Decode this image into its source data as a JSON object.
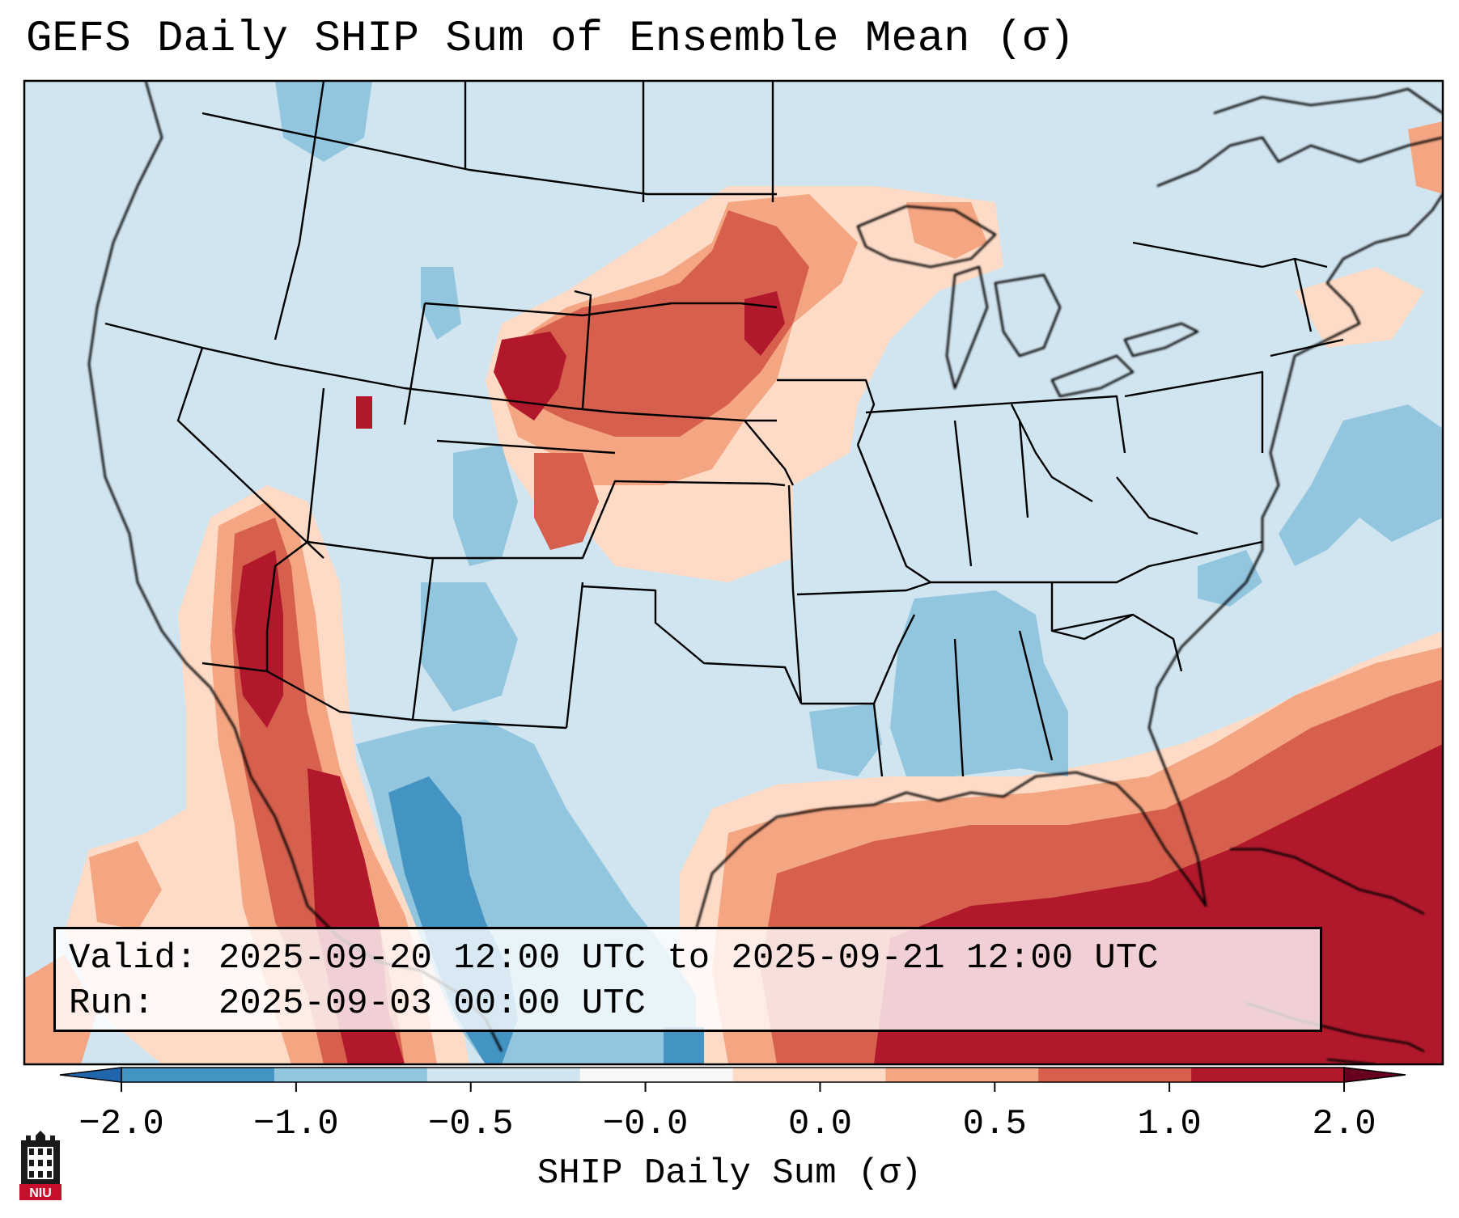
{
  "title": "GEFS Daily SHIP Sum of Ensemble Mean (σ)",
  "info": {
    "valid_label": "Valid:",
    "valid_range": "2025-09-20 12:00 UTC to 2025-09-21 12:00 UTC",
    "run_label": "Run:",
    "run_time": "2025-09-03 00:00 UTC"
  },
  "colorbar": {
    "title": "SHIP Daily Sum (σ)",
    "ticks": [
      "−2.0",
      "−1.0",
      "−0.5",
      "−0.0",
      "0.0",
      "0.5",
      "1.0",
      "2.0"
    ],
    "colors": [
      "#4393c3",
      "#92c5de",
      "#d1e5f0",
      "#f7f7f7",
      "#fddbc7",
      "#f4a582",
      "#d6604d",
      "#b2182b"
    ],
    "extend": "both"
  },
  "logo": {
    "text": "NIU",
    "color": "#c8102e"
  },
  "map": {
    "region": "Continental United States",
    "background_color": "#d1e5f0",
    "anomalies": [
      {
        "name": "northern-plains-positive",
        "level": "1.0 to 2.0"
      },
      {
        "name": "southwest-positive",
        "level": "1.0 to 2.0"
      },
      {
        "name": "gulf-atlantic-positive",
        "level": "1.0 to 2.0"
      },
      {
        "name": "texas-mexico-negative",
        "level": "-2.0 to -0.5"
      },
      {
        "name": "southeast-negative",
        "level": "-1.0 to -0.5"
      },
      {
        "name": "atlantic-negative",
        "level": "-1.0 to -0.5"
      }
    ]
  }
}
